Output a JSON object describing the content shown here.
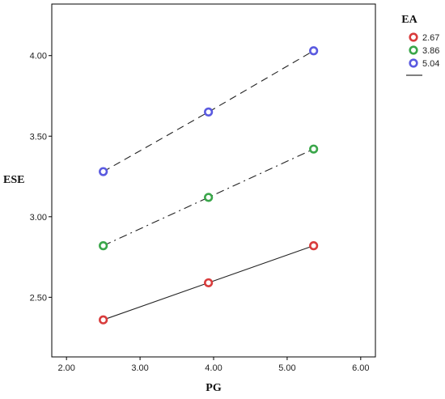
{
  "chart_data": {
    "type": "line",
    "xlabel": "PG",
    "ylabel": "ESE",
    "xlim": [
      1.8,
      6.2
    ],
    "ylim": [
      2.13,
      4.32
    ],
    "x_ticks": [
      "2.00",
      "3.00",
      "4.00",
      "5.00",
      "6.00"
    ],
    "x_tick_values": [
      2.0,
      3.0,
      4.0,
      5.0,
      6.0
    ],
    "y_ticks": [
      "2.50",
      "3.00",
      "3.50",
      "4.00"
    ],
    "y_tick_values": [
      2.5,
      3.0,
      3.5,
      4.0
    ],
    "legend": {
      "title": "EA",
      "placement": "right"
    },
    "series": [
      {
        "name": "2.67",
        "color": "#d93c3c",
        "line_style": "solid",
        "x": [
          2.5,
          3.93,
          5.36
        ],
        "y": [
          2.36,
          2.59,
          2.82
        ]
      },
      {
        "name": "3.86",
        "color": "#3aa64a",
        "line_style": "dash-dot",
        "x": [
          2.5,
          3.93,
          5.36
        ],
        "y": [
          2.82,
          3.12,
          3.42
        ]
      },
      {
        "name": "5.04",
        "color": "#5a5ae0",
        "line_style": "dashed",
        "x": [
          2.5,
          3.93,
          5.36
        ],
        "y": [
          3.28,
          3.65,
          4.03
        ]
      }
    ]
  }
}
